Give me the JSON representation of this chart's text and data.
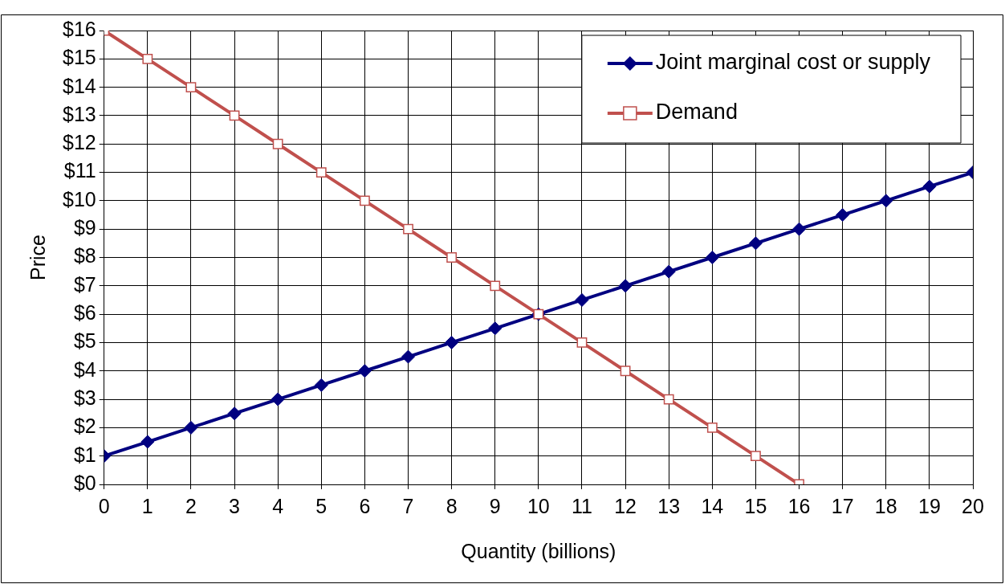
{
  "chart_data": {
    "type": "line",
    "xlabel": "Quantity (billions)",
    "ylabel": "Price",
    "xlim": [
      0,
      20
    ],
    "xticks": [
      0,
      1,
      2,
      3,
      4,
      5,
      6,
      7,
      8,
      9,
      10,
      11,
      12,
      13,
      14,
      15,
      16,
      17,
      18,
      19,
      20
    ],
    "ylim": [
      0,
      16
    ],
    "yticks": [
      {
        "value": 0,
        "label": "$0"
      },
      {
        "value": 1,
        "label": "$1"
      },
      {
        "value": 2,
        "label": "$2"
      },
      {
        "value": 3,
        "label": "$3"
      },
      {
        "value": 4,
        "label": "$4"
      },
      {
        "value": 5,
        "label": "$5"
      },
      {
        "value": 6,
        "label": "$6"
      },
      {
        "value": 7,
        "label": "$7"
      },
      {
        "value": 8,
        "label": "$8"
      },
      {
        "value": 9,
        "label": "$9"
      },
      {
        "value": 10,
        "label": "$10"
      },
      {
        "value": 11,
        "label": "$11"
      },
      {
        "value": 12,
        "label": "$12"
      },
      {
        "value": 13,
        "label": "$13"
      },
      {
        "value": 14,
        "label": "$14"
      },
      {
        "value": 15,
        "label": "$15"
      },
      {
        "value": 16,
        "label": "$16"
      }
    ],
    "grid": true,
    "legend": "top right",
    "line_style": "solid",
    "series": [
      {
        "name": "Joint marginal cost or supply",
        "color": "#000080",
        "marker": "diamond",
        "x": [
          0,
          1,
          2,
          3,
          4,
          5,
          6,
          7,
          8,
          9,
          10,
          11,
          12,
          13,
          14,
          15,
          16,
          17,
          18,
          19,
          20
        ],
        "values": [
          1,
          1.5,
          2,
          2.5,
          3,
          3.5,
          4,
          4.5,
          5,
          5.5,
          6,
          6.5,
          7,
          7.5,
          8,
          8.5,
          9,
          9.5,
          10,
          10.5,
          11
        ]
      },
      {
        "name": "Demand",
        "color": "#c0504d",
        "marker": "square",
        "x": [
          0,
          1,
          2,
          3,
          4,
          5,
          6,
          7,
          8,
          9,
          10,
          11,
          12,
          13,
          14,
          15,
          16
        ],
        "values": [
          16,
          15,
          14,
          13,
          12,
          11,
          10,
          9,
          8,
          7,
          6,
          5,
          4,
          3,
          2,
          1,
          0
        ]
      }
    ]
  }
}
